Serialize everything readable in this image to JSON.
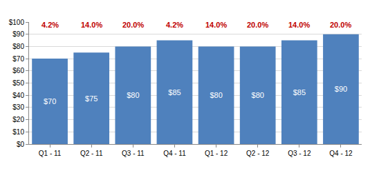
{
  "chart_data": {
    "type": "bar",
    "categories": [
      "Q1 - 11",
      "Q2 - 11",
      "Q3 - 11",
      "Q4 - 11",
      "Q1 - 12",
      "Q2 - 12",
      "Q3 - 12",
      "Q4 - 12"
    ],
    "values": [
      70,
      75,
      80,
      85,
      80,
      80,
      85,
      90
    ],
    "value_labels": [
      "$70",
      "$75",
      "$80",
      "$85",
      "$80",
      "$80",
      "$85",
      "$90"
    ],
    "data_labels": true,
    "color": "#4f81bd",
    "ylim": [
      0,
      100
    ],
    "yticks": [
      {
        "value": 0,
        "label": "$0"
      },
      {
        "value": 10,
        "label": "$10"
      },
      {
        "value": 20,
        "label": "$20"
      },
      {
        "value": 30,
        "label": "$30"
      },
      {
        "value": 40,
        "label": "$40"
      },
      {
        "value": 50,
        "label": "$50"
      },
      {
        "value": 60,
        "label": "$60"
      },
      {
        "value": 70,
        "label": "$70"
      },
      {
        "value": 80,
        "label": "$80"
      },
      {
        "value": 90,
        "label": "$90"
      },
      {
        "value": 100,
        "label": "$100"
      }
    ],
    "grid": true,
    "annotations": [
      {
        "category": "Q1 - 11",
        "text": "4.2%"
      },
      {
        "category": "Q2 - 11",
        "text": "14.0%"
      },
      {
        "category": "Q3 - 11",
        "text": "20.0%"
      },
      {
        "category": "Q4 - 11",
        "text": "4.2%"
      },
      {
        "category": "Q1 - 12",
        "text": "14.0%"
      },
      {
        "category": "Q2 - 12",
        "text": "20.0%"
      },
      {
        "category": "Q3 - 12",
        "text": "14.0%"
      },
      {
        "category": "Q4 - 12",
        "text": "20.0%"
      }
    ]
  }
}
